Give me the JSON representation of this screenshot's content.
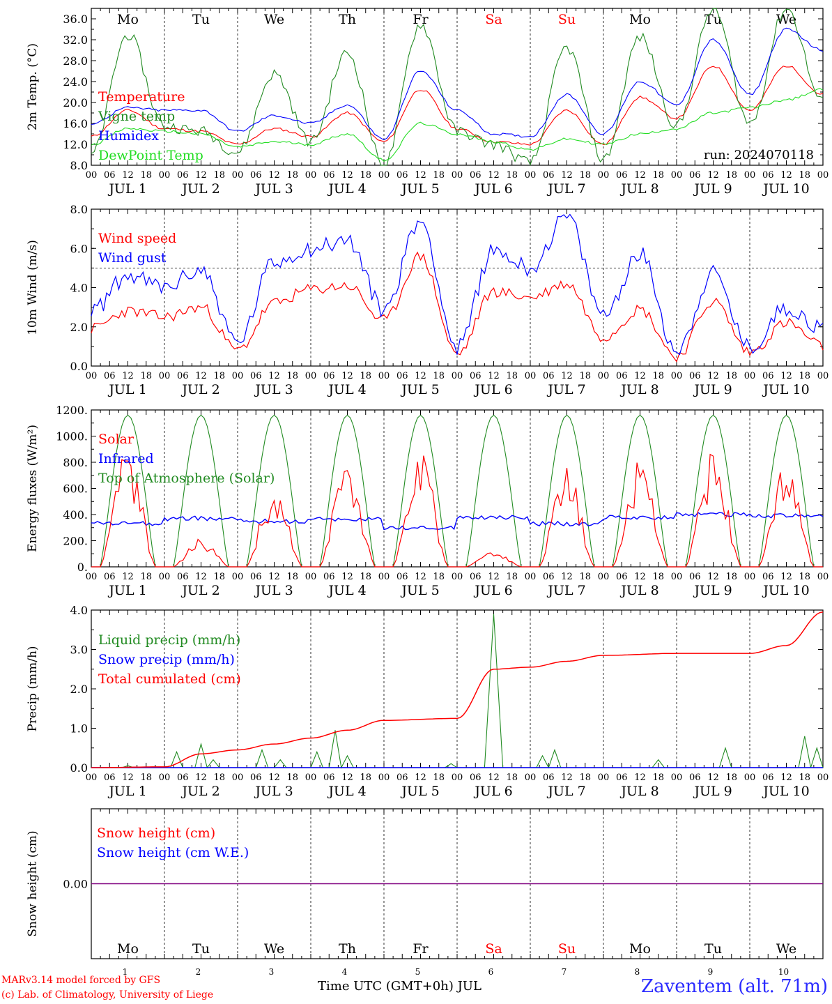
{
  "footer": {
    "model": "MARv3.14 model forced by GFS",
    "credit": "(c) Lab. of Climatology, University of Liege",
    "time_axis": "Time UTC (GMT+0h) JUL",
    "station": "Zaventem (alt. 71m)"
  },
  "colors": {
    "red": "#ff0000",
    "dark_green": "#228b22",
    "blue": "#0000ff",
    "light_green": "#22dd22",
    "purple": "#800080",
    "weekend": "#ff0000"
  },
  "days": [
    "Mo",
    "Tu",
    "We",
    "Th",
    "Fr",
    "Sa",
    "Su",
    "Mo",
    "Tu",
    "We"
  ],
  "weekend_days": [
    5,
    6
  ],
  "hour_ticks": [
    "00",
    "06",
    "12",
    "18"
  ],
  "date_labels": [
    "JUL  1",
    "JUL  2",
    "JUL  3",
    "JUL  4",
    "JUL  5",
    "JUL  6",
    "JUL  7",
    "JUL  8",
    "JUL  9",
    "JUL 10"
  ],
  "bottom_day_numbers": [
    "1",
    "2",
    "3",
    "4",
    "5",
    "6",
    "7",
    "8",
    "9",
    "10"
  ],
  "chart_data": [
    {
      "type": "line",
      "ylabel": "2m Temp. (°C)",
      "ylim": [
        8,
        38
      ],
      "yticks": [
        "8.0",
        "12.0",
        "16.0",
        "20.0",
        "24.0",
        "28.0",
        "32.0",
        "36.0"
      ],
      "ytick_values": [
        8,
        12,
        16,
        20,
        24,
        28,
        32,
        36
      ],
      "annotation": "run: 2024070118",
      "x_hours": [
        0,
        12,
        24,
        36,
        48,
        60,
        72,
        84,
        96,
        108,
        120,
        132,
        144,
        156,
        168,
        180,
        192,
        204,
        216,
        228,
        240
      ],
      "series": [
        {
          "name": "Temperature",
          "color": "#ff0000",
          "values": [
            13.5,
            18.5,
            15.0,
            14.5,
            12.0,
            15.0,
            13.5,
            18.0,
            12.5,
            22.5,
            15.0,
            12.5,
            12.0,
            18.5,
            12.0,
            21.0,
            17.0,
            27.0,
            18.5,
            27.0,
            21.5
          ]
        },
        {
          "name": "Vigne temp",
          "color": "#228b22",
          "values": [
            10.0,
            33.0,
            15.5,
            14.5,
            10.5,
            25.5,
            12.5,
            29.5,
            8.0,
            35.0,
            14.5,
            12.0,
            8.5,
            30.5,
            9.0,
            32.5,
            15.5,
            38.0,
            16.0,
            38.0,
            20.0
          ]
        },
        {
          "name": "Humidex",
          "color": "#0000ff",
          "values": [
            16.0,
            19.0,
            18.5,
            18.5,
            14.5,
            17.5,
            16.0,
            19.5,
            13.0,
            26.0,
            18.5,
            14.0,
            13.5,
            21.5,
            14.0,
            24.0,
            19.5,
            32.0,
            21.5,
            34.0,
            30.0
          ]
        },
        {
          "name": "DewPoint Temp",
          "color": "#22dd22",
          "values": [
            12.0,
            15.0,
            14.5,
            14.0,
            11.5,
            12.5,
            12.0,
            14.0,
            9.0,
            16.0,
            14.0,
            12.5,
            11.0,
            13.0,
            12.0,
            14.0,
            15.0,
            18.0,
            19.0,
            20.5,
            22.5
          ]
        }
      ]
    },
    {
      "type": "line",
      "ylabel": "10m Wind (m/s)",
      "ylim": [
        0,
        8
      ],
      "yticks": [
        "0.0",
        "2.0",
        "4.0",
        "6.0",
        "8.0"
      ],
      "ytick_values": [
        0,
        2,
        4,
        6,
        8
      ],
      "reference_line": 5,
      "x_hours": [
        0,
        12,
        24,
        36,
        48,
        60,
        72,
        84,
        96,
        108,
        120,
        132,
        144,
        156,
        168,
        180,
        192,
        204,
        216,
        228,
        240
      ],
      "series": [
        {
          "name": "Wind speed",
          "color": "#ff0000",
          "values": [
            1.9,
            2.8,
            2.5,
            3.0,
            0.8,
            3.2,
            3.9,
            4.1,
            2.3,
            5.6,
            0.6,
            3.8,
            3.5,
            4.2,
            1.5,
            2.9,
            0.5,
            3.3,
            0.7,
            2.2,
            1.0
          ]
        },
        {
          "name": "Wind gust",
          "color": "#0000ff",
          "values": [
            2.8,
            4.6,
            4.0,
            4.9,
            1.2,
            5.3,
            6.0,
            6.4,
            2.9,
            7.4,
            0.9,
            5.9,
            5.0,
            7.6,
            2.6,
            5.7,
            0.8,
            4.7,
            0.9,
            3.0,
            1.9
          ]
        }
      ]
    },
    {
      "type": "line",
      "ylabel": "Energy fluxes (W/m²)",
      "ylim": [
        0,
        1200
      ],
      "yticks": [
        "0.",
        "200.",
        "400.",
        "600.",
        "800.",
        "1000.",
        "1200."
      ],
      "ytick_values": [
        0,
        200,
        400,
        600,
        800,
        1000,
        1200
      ],
      "solar_peaks": [
        870,
        210,
        600,
        790,
        860,
        110,
        730,
        800,
        850,
        800
      ],
      "toa_peak": 1160,
      "infrared_levels": [
        330,
        370,
        350,
        365,
        300,
        380,
        330,
        380,
        400,
        390
      ],
      "series": [
        {
          "name": "Solar",
          "color": "#ff0000"
        },
        {
          "name": "Infrared",
          "color": "#0000ff"
        },
        {
          "name": "Top of Atmosphere (Solar)",
          "color": "#228b22"
        }
      ]
    },
    {
      "type": "line",
      "ylabel": "Precip (mm/h)",
      "ylim": [
        0,
        4
      ],
      "yticks": [
        "0.0",
        "1.0",
        "2.0",
        "3.0",
        "4.0"
      ],
      "ytick_values": [
        0,
        1,
        2,
        3,
        4
      ],
      "x_hours": [
        0,
        24,
        36,
        48,
        60,
        72,
        84,
        96,
        120,
        132,
        144,
        156,
        168,
        192,
        216,
        228,
        240
      ],
      "series": [
        {
          "name": "Liquid precip (mm/h)",
          "color": "#228b22",
          "spikes": [
            [
              12,
              0.05
            ],
            [
              28,
              0.4
            ],
            [
              36,
              0.6
            ],
            [
              40,
              0.2
            ],
            [
              56,
              0.45
            ],
            [
              62,
              0.2
            ],
            [
              74,
              0.4
            ],
            [
              80,
              0.95
            ],
            [
              84,
              0.3
            ],
            [
              118,
              0.1
            ],
            [
              132,
              3.9
            ],
            [
              148,
              0.3
            ],
            [
              152,
              0.45
            ],
            [
              186,
              0.2
            ],
            [
              208,
              0.5
            ],
            [
              234,
              0.8
            ],
            [
              238,
              0.5
            ]
          ]
        },
        {
          "name": "Snow precip (mm/h)",
          "color": "#0000ff",
          "values": [
            0,
            0
          ]
        },
        {
          "name": "Total cumulated (cm)",
          "color": "#ff0000",
          "values": [
            0.0,
            0.02,
            0.35,
            0.45,
            0.6,
            0.75,
            0.95,
            1.2,
            1.25,
            2.5,
            2.55,
            2.7,
            2.85,
            2.9,
            2.9,
            3.1,
            3.95
          ]
        }
      ]
    },
    {
      "type": "line",
      "ylabel": "Snow height (cm)",
      "ylim": [
        -1,
        1
      ],
      "yticks": [
        "0.00"
      ],
      "ytick_values": [
        0
      ],
      "series": [
        {
          "name": "Snow height (cm)",
          "color": "#ff0000",
          "values": [
            0,
            0
          ]
        },
        {
          "name": "Snow height (cm W.E.)",
          "color": "#0000ff",
          "values": [
            0,
            0
          ]
        }
      ]
    }
  ]
}
